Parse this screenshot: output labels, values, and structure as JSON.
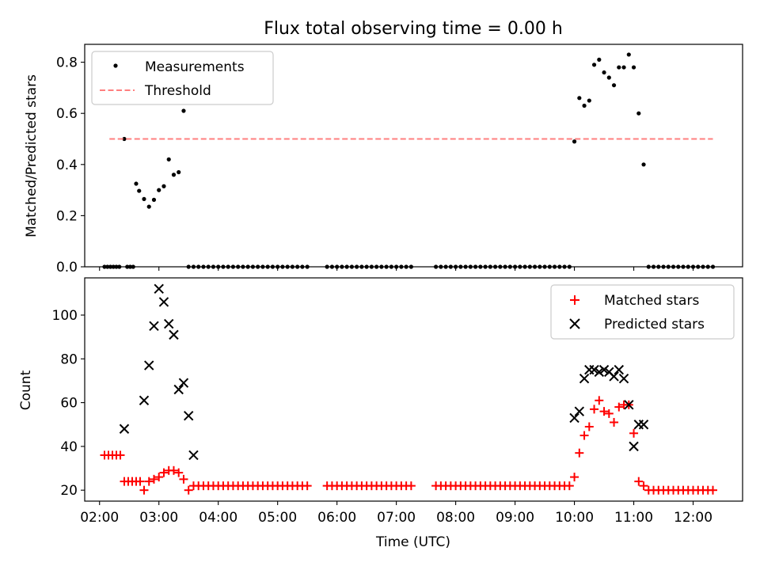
{
  "figure": {
    "title": "Flux total observing time = 0.00 h"
  },
  "chart_data": [
    {
      "type": "scatter",
      "ylabel": "Matched/Predicted stars",
      "xlabel": "",
      "xlim": [
        "01:45",
        "12:50"
      ],
      "ylim": [
        0,
        0.87
      ],
      "yticks": [
        0.0,
        0.2,
        0.4,
        0.6,
        0.8
      ],
      "ytick_labels": [
        "0.0",
        "0.2",
        "0.4",
        "0.6",
        "0.8"
      ],
      "xticks": [
        "02:00",
        "03:00",
        "04:00",
        "05:00",
        "06:00",
        "07:00",
        "08:00",
        "09:00",
        "10:00",
        "11:00",
        "12:00"
      ],
      "grid": false,
      "legend_position": "upper left",
      "series": [
        {
          "name": "Measurements",
          "kind": "scatter",
          "marker": "dot",
          "color": "#000000",
          "x": [
            "02:05",
            "02:08",
            "02:11",
            "02:14",
            "02:17",
            "02:20",
            "02:25",
            "02:28",
            "02:31",
            "02:34",
            "02:37",
            "02:40",
            "02:45",
            "02:50",
            "02:55",
            "03:00",
            "03:05",
            "03:10",
            "03:15",
            "03:20",
            "03:25",
            "03:30",
            "03:35",
            "03:40",
            "03:45",
            "03:50",
            "03:55",
            "04:00",
            "04:05",
            "04:10",
            "04:15",
            "04:20",
            "04:25",
            "04:30",
            "04:35",
            "04:40",
            "04:45",
            "04:50",
            "04:55",
            "05:00",
            "05:05",
            "05:10",
            "05:15",
            "05:20",
            "05:25",
            "05:30",
            "05:50",
            "05:55",
            "06:00",
            "06:05",
            "06:10",
            "06:15",
            "06:20",
            "06:25",
            "06:30",
            "06:35",
            "06:40",
            "06:45",
            "06:50",
            "06:55",
            "07:00",
            "07:05",
            "07:10",
            "07:15",
            "07:40",
            "07:45",
            "07:50",
            "07:55",
            "08:00",
            "08:05",
            "08:10",
            "08:15",
            "08:20",
            "08:25",
            "08:30",
            "08:35",
            "08:40",
            "08:45",
            "08:50",
            "08:55",
            "09:00",
            "09:05",
            "09:10",
            "09:15",
            "09:20",
            "09:25",
            "09:30",
            "09:35",
            "09:40",
            "09:45",
            "09:50",
            "09:55",
            "10:00",
            "10:05",
            "10:10",
            "10:15",
            "10:20",
            "10:25",
            "10:30",
            "10:35",
            "10:40",
            "10:45",
            "10:50",
            "10:55",
            "11:00",
            "11:05",
            "11:10",
            "11:15",
            "11:20",
            "11:25",
            "11:30",
            "11:35",
            "11:40",
            "11:45",
            "11:50",
            "11:55",
            "12:00",
            "12:05",
            "12:10",
            "12:15",
            "12:20"
          ],
          "y": [
            0,
            0,
            0,
            0,
            0,
            0,
            0.5,
            0,
            0,
            0,
            0.325,
            0.297,
            0.265,
            0.235,
            0.262,
            0.3,
            0.315,
            0.42,
            0.36,
            0.37,
            0.61,
            0,
            0,
            0,
            0,
            0,
            0,
            0,
            0,
            0,
            0,
            0,
            0,
            0,
            0,
            0,
            0,
            0,
            0,
            0,
            0,
            0,
            0,
            0,
            0,
            0,
            0,
            0,
            0,
            0,
            0,
            0,
            0,
            0,
            0,
            0,
            0,
            0,
            0,
            0,
            0,
            0,
            0,
            0,
            0,
            0,
            0,
            0,
            0,
            0,
            0,
            0,
            0,
            0,
            0,
            0,
            0,
            0,
            0,
            0,
            0,
            0,
            0,
            0,
            0,
            0,
            0,
            0,
            0,
            0,
            0,
            0,
            0.49,
            0.66,
            0.63,
            0.65,
            0.79,
            0.81,
            0.76,
            0.74,
            0.71,
            0.78,
            0.78,
            0.83,
            0.78,
            0.6,
            0.4,
            0,
            0,
            0,
            0,
            0,
            0,
            0,
            0,
            0,
            0,
            0,
            0,
            0,
            0
          ]
        },
        {
          "name": "Threshold",
          "kind": "line",
          "style": "dashed",
          "color": "#ff7f7f",
          "x": [
            "02:10",
            "12:20"
          ],
          "y": [
            0.5,
            0.5
          ]
        }
      ]
    },
    {
      "type": "scatter",
      "xlabel": "Time (UTC)",
      "ylabel": "Count",
      "xlim": [
        "01:45",
        "12:50"
      ],
      "ylim": [
        15,
        117
      ],
      "yticks": [
        20,
        40,
        60,
        80,
        100
      ],
      "ytick_labels": [
        "20",
        "40",
        "60",
        "80",
        "100"
      ],
      "xticks": [
        "02:00",
        "03:00",
        "04:00",
        "05:00",
        "06:00",
        "07:00",
        "08:00",
        "09:00",
        "10:00",
        "11:00",
        "12:00"
      ],
      "grid": false,
      "legend_position": "upper right",
      "series": [
        {
          "name": "Matched stars",
          "kind": "scatter",
          "marker": "plus",
          "color": "#ff0000",
          "x": [
            "02:05",
            "02:09",
            "02:13",
            "02:17",
            "02:21",
            "02:25",
            "02:29",
            "02:33",
            "02:37",
            "02:41",
            "02:45",
            "02:50",
            "02:55",
            "03:00",
            "03:05",
            "03:10",
            "03:15",
            "03:20",
            "03:25",
            "03:30",
            "03:35",
            "03:40",
            "03:45",
            "03:50",
            "03:55",
            "04:00",
            "04:05",
            "04:10",
            "04:15",
            "04:20",
            "04:25",
            "04:30",
            "04:35",
            "04:40",
            "04:45",
            "04:50",
            "04:55",
            "05:00",
            "05:05",
            "05:10",
            "05:15",
            "05:20",
            "05:25",
            "05:30",
            "05:50",
            "05:55",
            "06:00",
            "06:05",
            "06:10",
            "06:15",
            "06:20",
            "06:25",
            "06:30",
            "06:35",
            "06:40",
            "06:45",
            "06:50",
            "06:55",
            "07:00",
            "07:05",
            "07:10",
            "07:15",
            "07:40",
            "07:45",
            "07:50",
            "07:55",
            "08:00",
            "08:05",
            "08:10",
            "08:15",
            "08:20",
            "08:25",
            "08:30",
            "08:35",
            "08:40",
            "08:45",
            "08:50",
            "08:55",
            "09:00",
            "09:05",
            "09:10",
            "09:15",
            "09:20",
            "09:25",
            "09:30",
            "09:35",
            "09:40",
            "09:45",
            "09:50",
            "09:55",
            "10:00",
            "10:05",
            "10:10",
            "10:15",
            "10:20",
            "10:25",
            "10:30",
            "10:35",
            "10:40",
            "10:45",
            "10:50",
            "10:55",
            "11:00",
            "11:05",
            "11:10",
            "11:15",
            "11:20",
            "11:25",
            "11:30",
            "11:35",
            "11:40",
            "11:45",
            "11:50",
            "11:55",
            "12:00",
            "12:05",
            "12:10",
            "12:15",
            "12:20"
          ],
          "y": [
            36,
            36,
            36,
            36,
            36,
            24,
            24,
            24,
            24,
            24,
            20,
            24,
            25,
            26,
            28,
            29,
            29,
            28,
            25,
            20,
            22,
            22,
            22,
            22,
            22,
            22,
            22,
            22,
            22,
            22,
            22,
            22,
            22,
            22,
            22,
            22,
            22,
            22,
            22,
            22,
            22,
            22,
            22,
            22,
            22,
            22,
            22,
            22,
            22,
            22,
            22,
            22,
            22,
            22,
            22,
            22,
            22,
            22,
            22,
            22,
            22,
            22,
            22,
            22,
            22,
            22,
            22,
            22,
            22,
            22,
            22,
            22,
            22,
            22,
            22,
            22,
            22,
            22,
            22,
            22,
            22,
            22,
            22,
            22,
            22,
            22,
            22,
            22,
            22,
            22,
            26,
            37,
            45,
            49,
            57,
            61,
            56,
            55,
            51,
            58,
            59,
            59,
            46,
            24,
            22,
            20,
            20,
            20,
            20,
            20,
            20,
            20,
            20,
            20,
            20,
            20,
            20,
            20,
            20
          ]
        },
        {
          "name": "Predicted stars",
          "kind": "scatter",
          "marker": "x",
          "color": "#000000",
          "x": [
            "02:25",
            "02:45",
            "02:50",
            "02:55",
            "03:00",
            "03:05",
            "03:10",
            "03:15",
            "03:20",
            "03:25",
            "03:30",
            "03:35",
            "10:00",
            "10:05",
            "10:10",
            "10:15",
            "10:20",
            "10:25",
            "10:30",
            "10:35",
            "10:40",
            "10:45",
            "10:50",
            "10:55",
            "11:00",
            "11:05",
            "11:10"
          ],
          "y": [
            48,
            61,
            77,
            95,
            112,
            106,
            96,
            91,
            66,
            69,
            54,
            36,
            53,
            56,
            71,
            75,
            75,
            74,
            75,
            74,
            72,
            75,
            71,
            59,
            40,
            50,
            50
          ]
        }
      ]
    }
  ]
}
